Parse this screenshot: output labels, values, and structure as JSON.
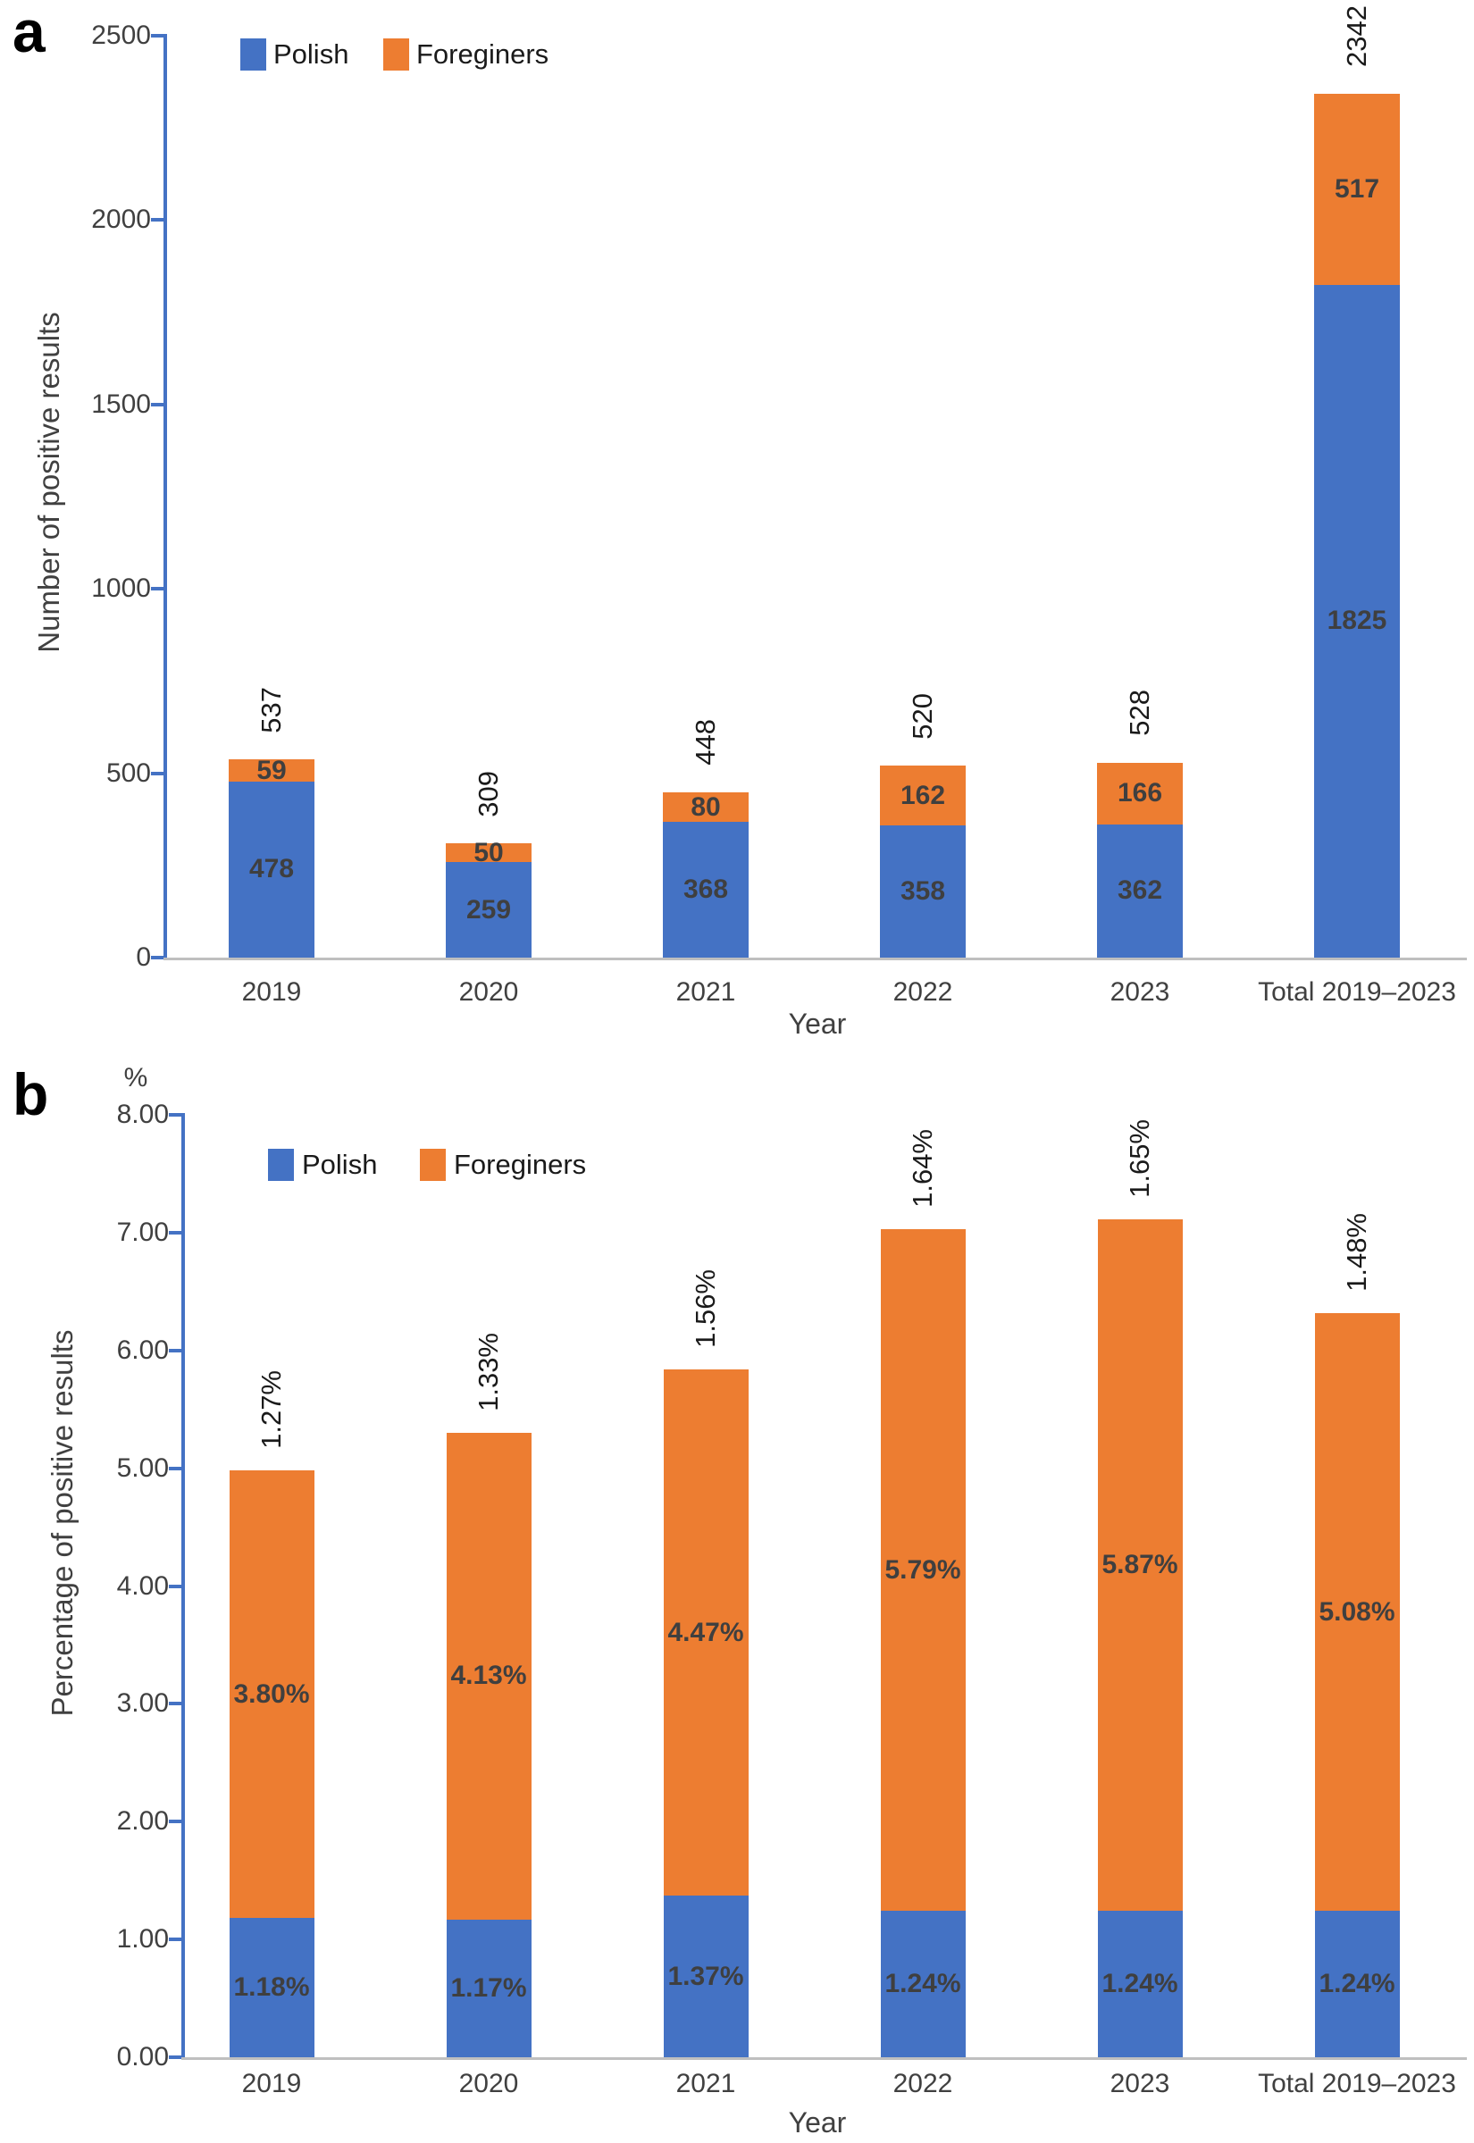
{
  "figure": {
    "panel_letters": [
      "a",
      "b"
    ]
  },
  "colors": {
    "polish_blue": "#4472C4",
    "foreigners_orange": "#ED7D31",
    "y_axis_line": "#4472C4",
    "x_axis_line": "#BFBFBF",
    "tick_text": "#404040",
    "segment_label_text": "#3F3F3F",
    "total_label_text": "#1A1A1A"
  },
  "chart_data": [
    {
      "type": "bar",
      "stacked": true,
      "panel_letter": "a",
      "title": "",
      "xlabel": "Year",
      "ylabel": "Number of positive results",
      "y_unit_label": "",
      "ylim": [
        0,
        2500
      ],
      "ytick_labels": [
        "0",
        "500",
        "1000",
        "1500",
        "2000",
        "2500"
      ],
      "grid": false,
      "legend_position": "top-inside",
      "categories": [
        "2019",
        "2020",
        "2021",
        "2022",
        "2023",
        "Total 2019–2023"
      ],
      "series": [
        {
          "name": "Polish",
          "color": "#4472C4",
          "values": [
            478,
            259,
            368,
            358,
            362,
            1825
          ],
          "value_labels": [
            "478",
            "259",
            "368",
            "358",
            "362",
            "1825"
          ]
        },
        {
          "name": "Foreginers",
          "color": "#ED7D31",
          "values": [
            59,
            50,
            80,
            162,
            166,
            517
          ],
          "value_labels": [
            "59",
            "50",
            "80",
            "162",
            "166",
            "517"
          ]
        }
      ],
      "stack_total_labels": [
        "537",
        "309",
        "448",
        "520",
        "528",
        "2342"
      ]
    },
    {
      "type": "bar",
      "stacked": true,
      "panel_letter": "b",
      "title": "",
      "xlabel": "Year",
      "ylabel": "Percentage of positive results",
      "y_unit_label": "%",
      "ylim": [
        0,
        8
      ],
      "ytick_labels": [
        "0.00",
        "1.00",
        "2.00",
        "3.00",
        "4.00",
        "5.00",
        "6.00",
        "7.00",
        "8.00"
      ],
      "grid": false,
      "legend_position": "top-inside",
      "categories": [
        "2019",
        "2020",
        "2021",
        "2022",
        "2023",
        "Total 2019–2023"
      ],
      "series": [
        {
          "name": "Polish",
          "color": "#4472C4",
          "values": [
            1.18,
            1.17,
            1.37,
            1.24,
            1.24,
            1.24
          ],
          "value_labels": [
            "1.18%",
            "1.17%",
            "1.37%",
            "1.24%",
            "1.24%",
            "1.24%"
          ]
        },
        {
          "name": "Foreginers",
          "color": "#ED7D31",
          "values": [
            3.8,
            4.13,
            4.47,
            5.79,
            5.87,
            5.08
          ],
          "value_labels": [
            "3.80%",
            "4.13%",
            "4.47%",
            "5.79%",
            "5.87%",
            "5.08%"
          ]
        }
      ],
      "stack_total_labels": [
        "1.27%",
        "1.33%",
        "1.56%",
        "1.64%",
        "1.65%",
        "1.48%"
      ]
    }
  ]
}
